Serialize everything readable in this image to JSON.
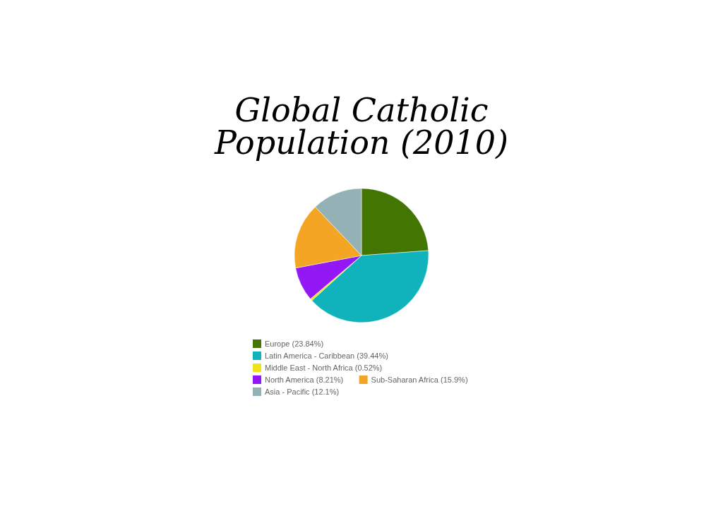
{
  "chart_data": {
    "type": "pie",
    "title": "Global Catholic Population (2010)",
    "categories": [
      "Europe (23.84%)",
      "Latin America - Caribbean (39.44%)",
      "Middle East - North Africa (0.52%)",
      "North America (8.21%)",
      "Sub-Saharan Africa (15.9%)",
      "Asia - Pacific (12.1%)"
    ],
    "values": [
      23.84,
      39.44,
      0.52,
      8.21,
      15.9,
      12.1
    ],
    "colors": [
      "#437503",
      "#10b2bb",
      "#f0e418",
      "#9418f5",
      "#f4a523",
      "#94b1b5"
    ],
    "legend": "bottom"
  }
}
